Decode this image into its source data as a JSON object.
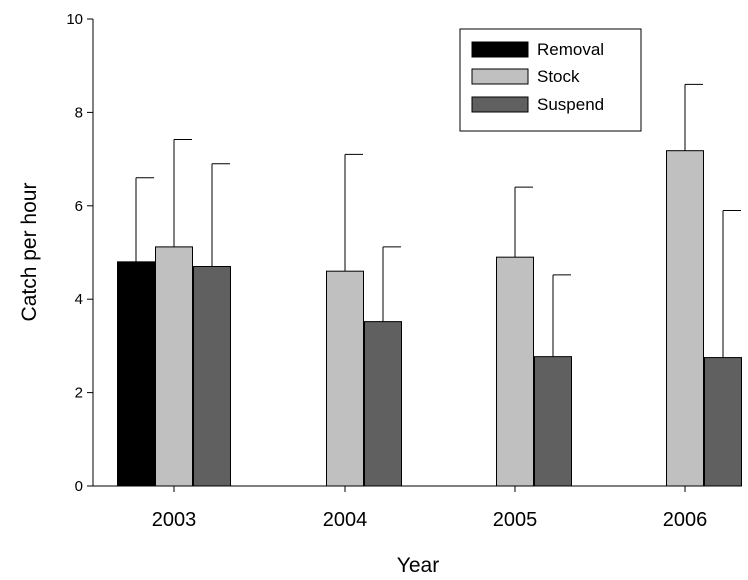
{
  "chart_data": {
    "type": "bar",
    "categories": [
      "2003",
      "2004",
      "2005",
      "2006"
    ],
    "series": [
      {
        "name": "Removal",
        "color": "#000000",
        "values": [
          4.8,
          null,
          null,
          null
        ],
        "errors": [
          1.8,
          null,
          null,
          null
        ]
      },
      {
        "name": "Stock",
        "color": "#c0c0c0",
        "values": [
          5.12,
          4.6,
          4.9,
          7.18
        ],
        "errors": [
          2.3,
          2.5,
          1.5,
          1.42
        ]
      },
      {
        "name": "Suspend",
        "color": "#606060",
        "values": [
          4.7,
          3.52,
          2.77,
          2.75
        ],
        "errors": [
          2.2,
          1.6,
          1.75,
          3.15
        ]
      }
    ],
    "xlabel": "Year",
    "ylabel": "Catch per hour",
    "ylim": [
      0,
      10
    ],
    "yticks": [
      "0",
      "2",
      "4",
      "6",
      "8",
      "10"
    ],
    "error_bars": "upper",
    "legend": "top-right"
  }
}
